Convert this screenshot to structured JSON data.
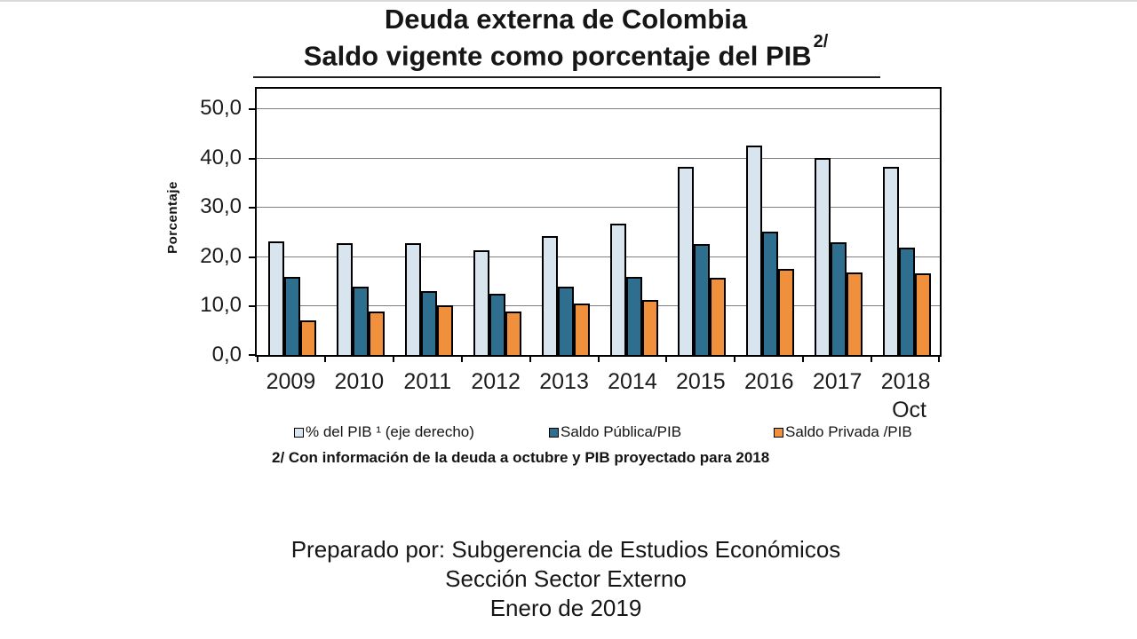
{
  "title": {
    "line1": "Deuda externa de Colombia",
    "line2": "Saldo vigente como porcentaje del PIB",
    "line2_superscript": "2/"
  },
  "chart_data": {
    "type": "bar",
    "title": "Deuda externa de Colombia - Saldo vigente como porcentaje del PIB 2/",
    "ylabel": "Porcentaje",
    "xlabel": "",
    "grid": true,
    "legend_position": "bottom",
    "ylim": [
      0,
      54
    ],
    "yticks": [
      0,
      10,
      20,
      30,
      40,
      50
    ],
    "ytick_labels": [
      "0,0",
      "10,0",
      "20,0",
      "30,0",
      "40,0",
      "50,0"
    ],
    "categories": [
      "2009",
      "2010",
      "2011",
      "2012",
      "2013",
      "2014",
      "2015",
      "2016",
      "2017",
      "2018"
    ],
    "x_sub_label": "Oct",
    "series": [
      {
        "key": "pib_total",
        "name": "% del PIB ¹ (eje derecho)",
        "color": "#d9e5ee",
        "values": [
          23.1,
          22.6,
          22.6,
          21.3,
          24.2,
          26.7,
          38.2,
          42.5,
          39.9,
          38.1
        ]
      },
      {
        "key": "saldo_publica",
        "name": "Saldo Pública/PIB",
        "color": "#2e6e8e",
        "values": [
          15.9,
          13.9,
          12.9,
          12.4,
          13.8,
          15.8,
          22.5,
          25.1,
          22.9,
          21.7
        ]
      },
      {
        "key": "saldo_privada",
        "name": "Saldo Privada /PIB",
        "color": "#f0903c",
        "values": [
          7.1,
          8.9,
          10.0,
          8.8,
          10.5,
          11.1,
          15.6,
          17.5,
          16.8,
          16.5
        ]
      }
    ]
  },
  "footnote": "2/ Con información de la deuda a octubre y PIB proyectado para  2018",
  "footer": {
    "line1": "Preparado por: Subgerencia de Estudios Económicos",
    "line2": "Sección Sector Externo",
    "line3": "Enero de 2019"
  }
}
